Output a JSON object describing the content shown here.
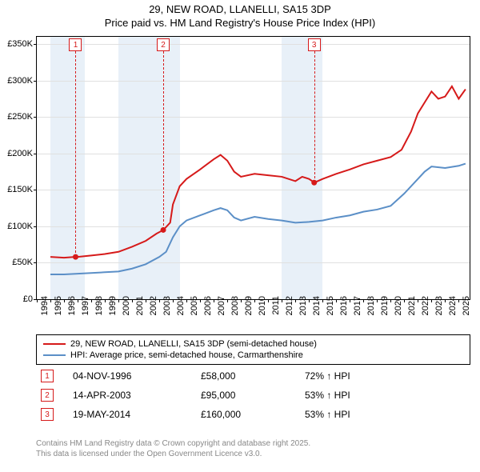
{
  "title_line1": "29, NEW ROAD, LLANELLI, SA15 3DP",
  "title_line2": "Price paid vs. HM Land Registry's House Price Index (HPI)",
  "chart": {
    "type": "line",
    "background_color": "#ffffff",
    "shade_color": "#e8f0f8",
    "grid_color": "#e0e0e0",
    "axis_color": "#000000",
    "label_fontsize": 11,
    "xlim": [
      1994,
      2025.8
    ],
    "ylim": [
      0,
      360000
    ],
    "yticks": [
      0,
      50000,
      100000,
      150000,
      200000,
      250000,
      300000,
      350000
    ],
    "ytick_labels": [
      "£0",
      "£50K",
      "£100K",
      "£150K",
      "£200K",
      "£250K",
      "£300K",
      "£350K"
    ],
    "xticks": [
      1994,
      1995,
      1996,
      1997,
      1998,
      1999,
      2000,
      2001,
      2002,
      2003,
      2004,
      2005,
      2006,
      2007,
      2008,
      2009,
      2010,
      2011,
      2012,
      2013,
      2014,
      2015,
      2016,
      2017,
      2018,
      2019,
      2020,
      2021,
      2022,
      2023,
      2024,
      2025
    ],
    "xtick_labels": [
      "1994",
      "1995",
      "1996",
      "1997",
      "1998",
      "1999",
      "2000",
      "2001",
      "2002",
      "2003",
      "2004",
      "2005",
      "2006",
      "2007",
      "2008",
      "2009",
      "2010",
      "2011",
      "2012",
      "2013",
      "2014",
      "2015",
      "2016",
      "2017",
      "2018",
      "2019",
      "2020",
      "2021",
      "2022",
      "2023",
      "2024",
      "2025"
    ],
    "shaded_ranges": [
      [
        1995,
        1997.5
      ],
      [
        2000,
        2004.5
      ],
      [
        2012,
        2015
      ]
    ],
    "series": [
      {
        "name": "29, NEW ROAD, LLANELLI, SA15 3DP (semi-detached house)",
        "color": "#d61a1a",
        "line_width": 2,
        "data": [
          [
            1995,
            58000
          ],
          [
            1996,
            57000
          ],
          [
            1996.8,
            58000
          ],
          [
            1997,
            58000
          ],
          [
            1998,
            60000
          ],
          [
            1999,
            62000
          ],
          [
            2000,
            65000
          ],
          [
            2001,
            72000
          ],
          [
            2002,
            80000
          ],
          [
            2002.8,
            90000
          ],
          [
            2003.3,
            95000
          ],
          [
            2003.8,
            105000
          ],
          [
            2004,
            130000
          ],
          [
            2004.5,
            155000
          ],
          [
            2005,
            165000
          ],
          [
            2006,
            178000
          ],
          [
            2007,
            192000
          ],
          [
            2007.5,
            198000
          ],
          [
            2008,
            190000
          ],
          [
            2008.5,
            175000
          ],
          [
            2009,
            168000
          ],
          [
            2010,
            172000
          ],
          [
            2011,
            170000
          ],
          [
            2012,
            168000
          ],
          [
            2013,
            162000
          ],
          [
            2013.5,
            168000
          ],
          [
            2014,
            165000
          ],
          [
            2014.4,
            160000
          ],
          [
            2015,
            165000
          ],
          [
            2016,
            172000
          ],
          [
            2017,
            178000
          ],
          [
            2018,
            185000
          ],
          [
            2019,
            190000
          ],
          [
            2020,
            195000
          ],
          [
            2020.8,
            205000
          ],
          [
            2021.5,
            230000
          ],
          [
            2022,
            255000
          ],
          [
            2022.5,
            270000
          ],
          [
            2023,
            285000
          ],
          [
            2023.5,
            275000
          ],
          [
            2024,
            278000
          ],
          [
            2024.5,
            292000
          ],
          [
            2025,
            275000
          ],
          [
            2025.5,
            288000
          ]
        ]
      },
      {
        "name": "HPI: Average price, semi-detached house, Carmarthenshire",
        "color": "#5b8fc7",
        "line_width": 2,
        "data": [
          [
            1995,
            34000
          ],
          [
            1996,
            34000
          ],
          [
            1997,
            35000
          ],
          [
            1998,
            36000
          ],
          [
            1999,
            37000
          ],
          [
            2000,
            38000
          ],
          [
            2001,
            42000
          ],
          [
            2002,
            48000
          ],
          [
            2003,
            58000
          ],
          [
            2003.5,
            65000
          ],
          [
            2004,
            85000
          ],
          [
            2004.5,
            100000
          ],
          [
            2005,
            108000
          ],
          [
            2006,
            115000
          ],
          [
            2007,
            122000
          ],
          [
            2007.5,
            125000
          ],
          [
            2008,
            122000
          ],
          [
            2008.5,
            112000
          ],
          [
            2009,
            108000
          ],
          [
            2010,
            113000
          ],
          [
            2011,
            110000
          ],
          [
            2012,
            108000
          ],
          [
            2013,
            105000
          ],
          [
            2014,
            106000
          ],
          [
            2015,
            108000
          ],
          [
            2016,
            112000
          ],
          [
            2017,
            115000
          ],
          [
            2018,
            120000
          ],
          [
            2019,
            123000
          ],
          [
            2020,
            128000
          ],
          [
            2021,
            145000
          ],
          [
            2022,
            165000
          ],
          [
            2022.5,
            175000
          ],
          [
            2023,
            182000
          ],
          [
            2024,
            180000
          ],
          [
            2025,
            183000
          ],
          [
            2025.5,
            186000
          ]
        ]
      }
    ],
    "annotations": [
      {
        "n": "1",
        "x": 1996.85,
        "marker_y": 58000,
        "color": "#d61a1a"
      },
      {
        "n": "2",
        "x": 2003.29,
        "marker_y": 95000,
        "color": "#d61a1a"
      },
      {
        "n": "3",
        "x": 2014.38,
        "marker_y": 160000,
        "color": "#d61a1a"
      }
    ]
  },
  "legend": {
    "items": [
      {
        "color": "#d61a1a",
        "label": "29, NEW ROAD, LLANELLI, SA15 3DP (semi-detached house)"
      },
      {
        "color": "#5b8fc7",
        "label": "HPI: Average price, semi-detached house, Carmarthenshire"
      }
    ]
  },
  "markers_table": [
    {
      "n": "1",
      "date": "04-NOV-1996",
      "price": "£58,000",
      "pct": "72% ↑ HPI",
      "color": "#d61a1a"
    },
    {
      "n": "2",
      "date": "14-APR-2003",
      "price": "£95,000",
      "pct": "53% ↑ HPI",
      "color": "#d61a1a"
    },
    {
      "n": "3",
      "date": "19-MAY-2014",
      "price": "£160,000",
      "pct": "53% ↑ HPI",
      "color": "#d61a1a"
    }
  ],
  "footnote_line1": "Contains HM Land Registry data © Crown copyright and database right 2025.",
  "footnote_line2": "This data is licensed under the Open Government Licence v3.0."
}
